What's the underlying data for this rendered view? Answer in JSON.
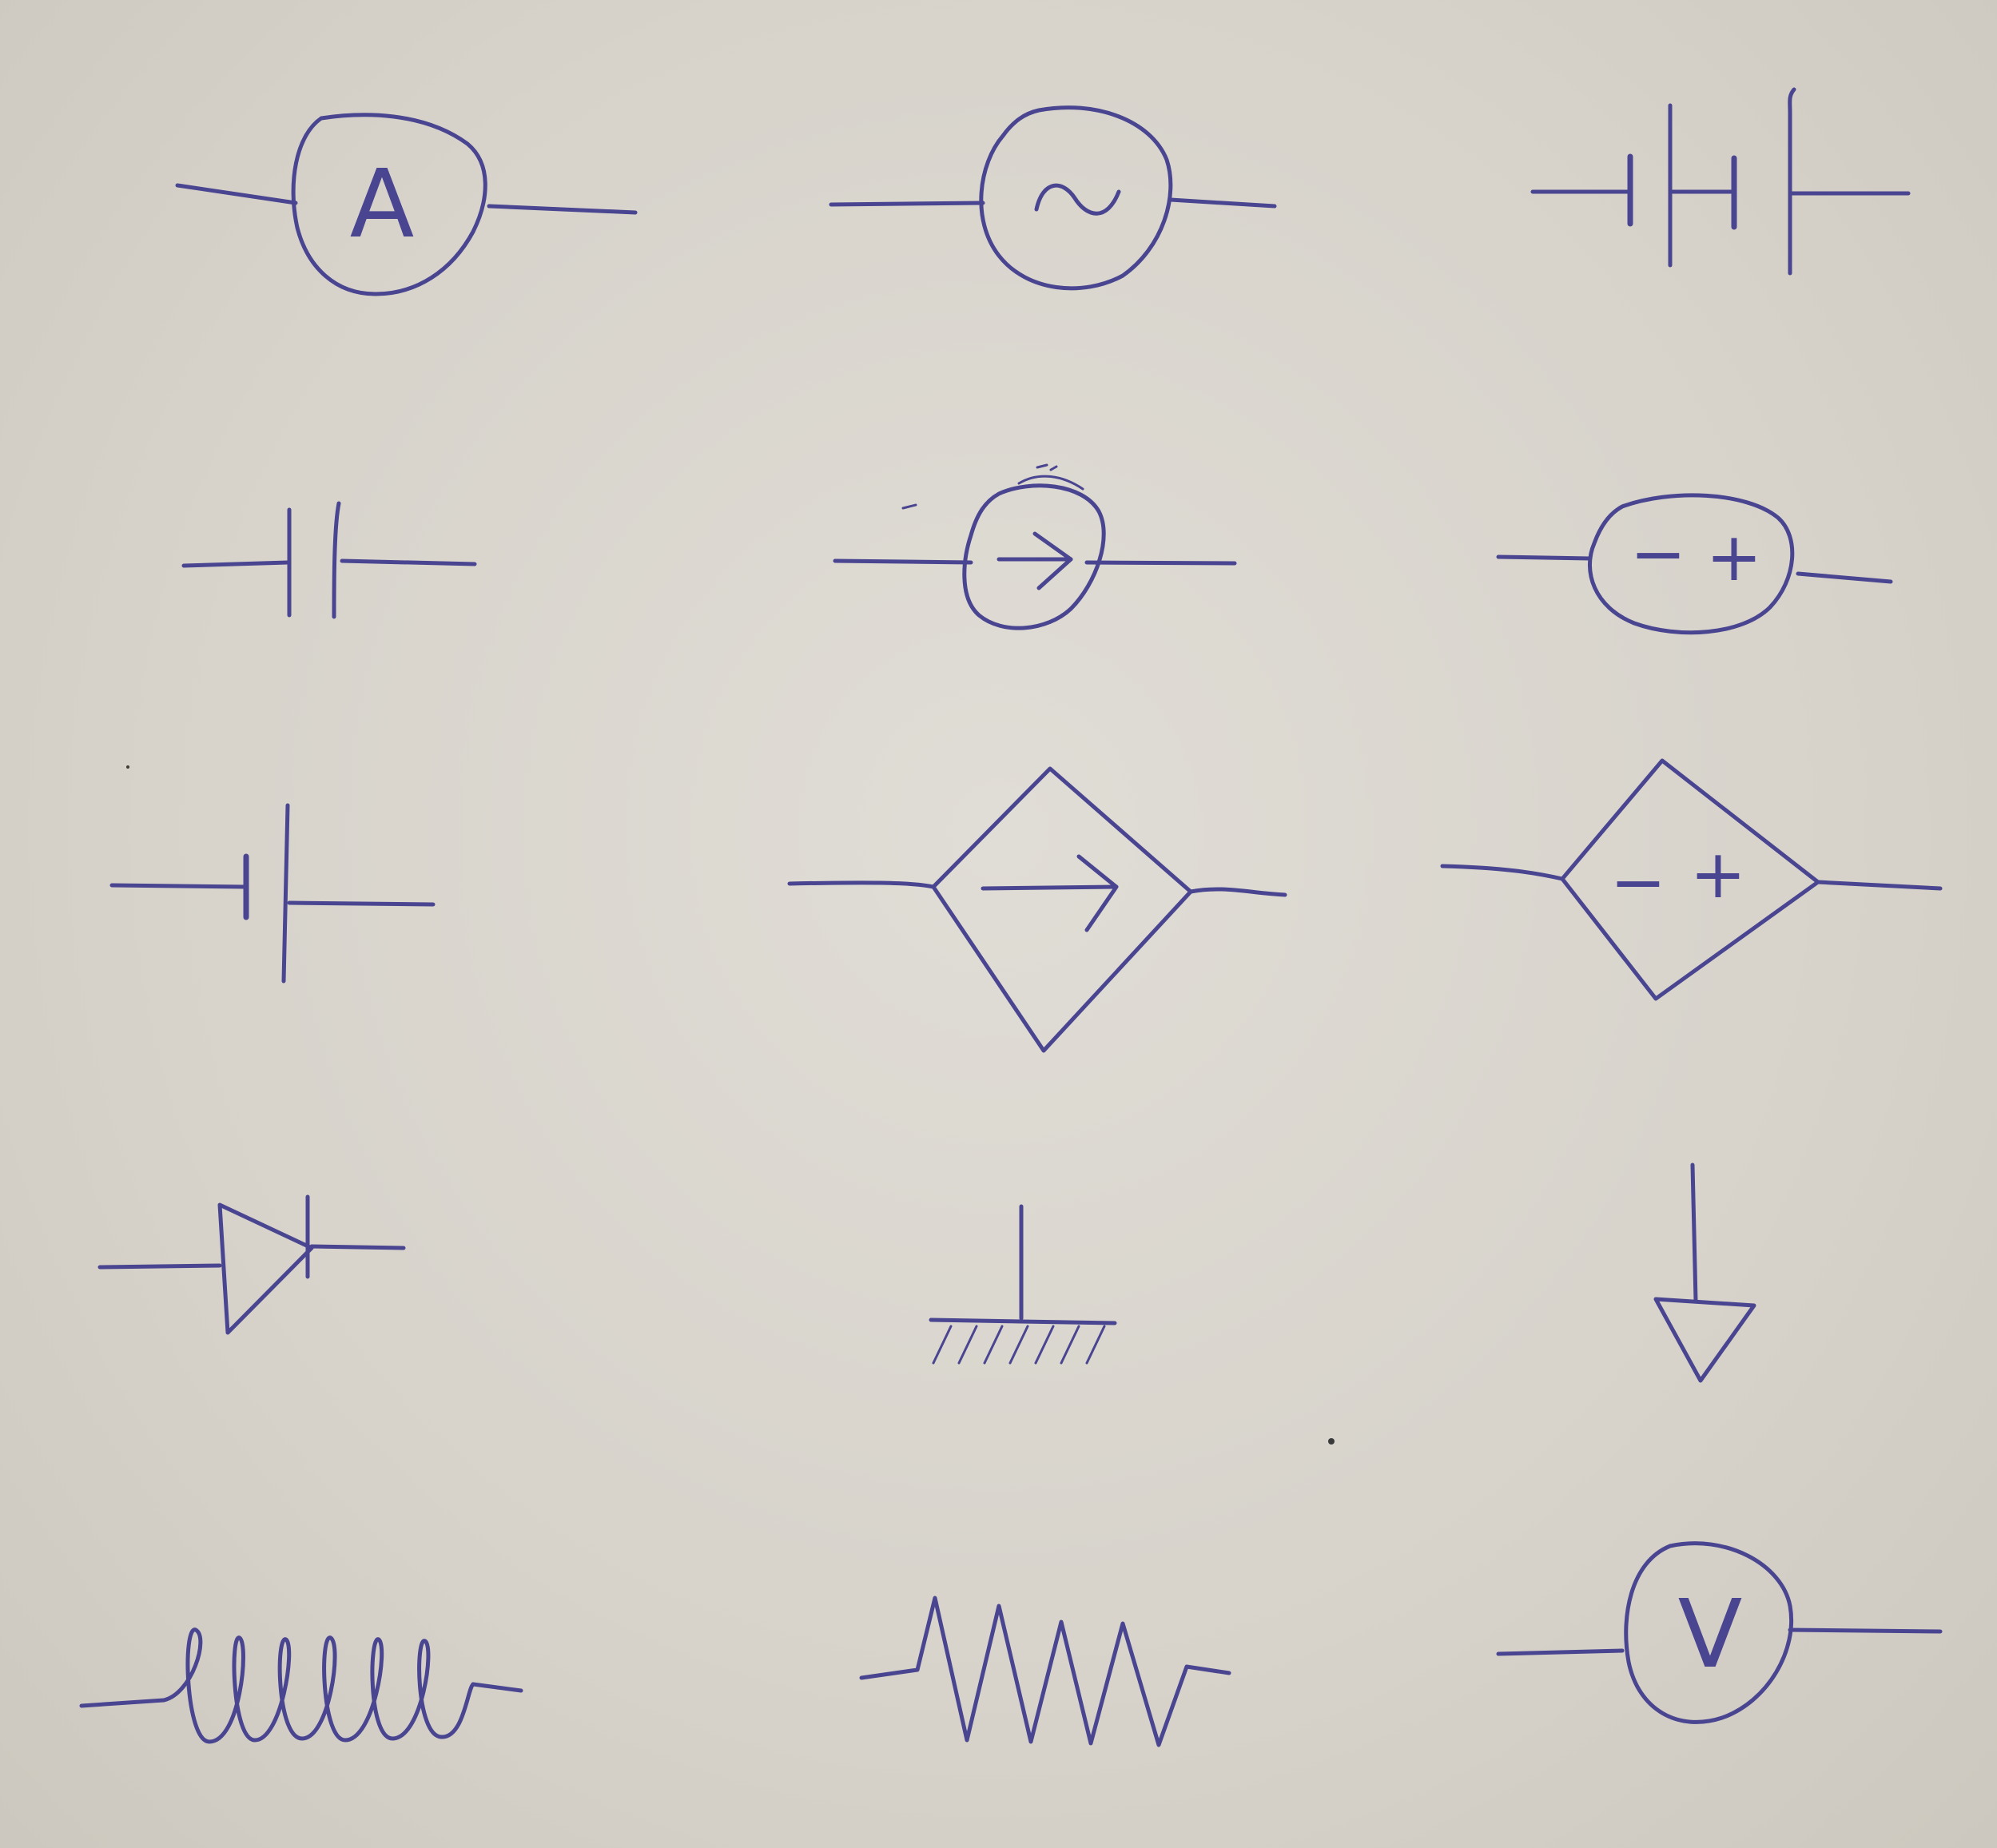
{
  "paper": {
    "background_color": "#d9d5cd",
    "ink_color": "#4a4590"
  },
  "symbols": {
    "ammeter": {
      "icon": "ammeter-symbol",
      "letter": "A"
    },
    "ac_source": {
      "icon": "ac-source-symbol",
      "glyph": "~"
    },
    "battery_multi_cell": {
      "icon": "multi-cell-battery-symbol"
    },
    "capacitor": {
      "icon": "capacitor-symbol"
    },
    "current_source": {
      "icon": "current-source-symbol"
    },
    "voltage_source": {
      "icon": "voltage-source-symbol",
      "minus": "−",
      "plus": "+"
    },
    "battery_cell": {
      "icon": "battery-cell-symbol"
    },
    "dependent_current_source": {
      "icon": "dependent-current-source-symbol"
    },
    "dependent_voltage_source": {
      "icon": "dependent-voltage-source-symbol",
      "minus": "−",
      "plus": "+"
    },
    "diode": {
      "icon": "diode-symbol"
    },
    "chassis_ground": {
      "icon": "chassis-ground-symbol"
    },
    "signal_ground": {
      "icon": "signal-ground-symbol"
    },
    "inductor": {
      "icon": "inductor-symbol"
    },
    "resistor": {
      "icon": "resistor-symbol"
    },
    "voltmeter": {
      "icon": "voltmeter-symbol",
      "letter": "V"
    }
  }
}
